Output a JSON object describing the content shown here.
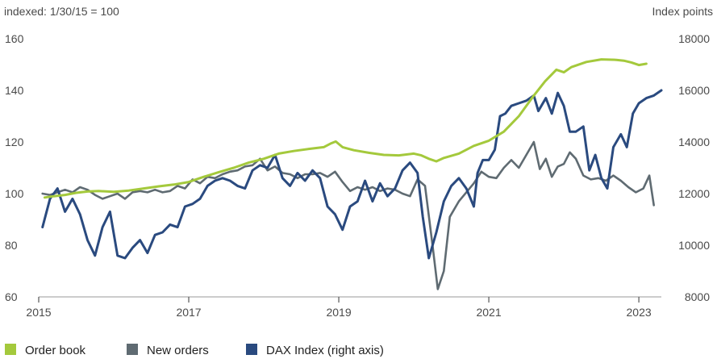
{
  "chart_data": {
    "type": "line",
    "left_axis_title": "indexed: 1/30/15 = 100",
    "right_axis_title": "Index points",
    "y_left": {
      "min": 60,
      "max": 160,
      "ticks": [
        60,
        80,
        100,
        120,
        140,
        160
      ]
    },
    "y_right": {
      "min": 8000,
      "max": 18000,
      "ticks": [
        8000,
        10000,
        12000,
        14000,
        16000,
        18000
      ],
      "tick_labels": [
        "8000",
        "10000",
        "12000",
        "14000",
        "16000",
        "18000"
      ]
    },
    "x_axis": {
      "min": 2015.0,
      "max": 2023.3,
      "ticks": [
        2015,
        2017,
        2019,
        2021,
        2023
      ],
      "tick_labels": [
        "2015",
        "2017",
        "2019",
        "2021",
        "2023"
      ]
    },
    "colors": {
      "order_book": "#a4c93c",
      "new_orders": "#5f6b72",
      "dax": "#2a4a7f",
      "tick_mark": "#555555",
      "axis_line": "#9a9a9a"
    },
    "series": [
      {
        "name": "Order book",
        "axis": "left",
        "x": [
          2015.08,
          2015.2,
          2015.35,
          2015.5,
          2015.65,
          2015.8,
          2016.0,
          2016.2,
          2016.4,
          2016.6,
          2016.8,
          2017.0,
          2017.2,
          2017.4,
          2017.6,
          2017.8,
          2018.0,
          2018.2,
          2018.4,
          2018.6,
          2018.8,
          2018.9,
          2018.96,
          2019.05,
          2019.2,
          2019.4,
          2019.6,
          2019.8,
          2020.0,
          2020.1,
          2020.2,
          2020.3,
          2020.4,
          2020.6,
          2020.8,
          2021.0,
          2021.2,
          2021.4,
          2021.6,
          2021.75,
          2021.9,
          2022.0,
          2022.1,
          2022.3,
          2022.5,
          2022.7,
          2022.8,
          2022.9,
          2023.0,
          2023.1
        ],
        "values": [
          98.5,
          99.0,
          99.5,
          100.3,
          100.8,
          101.0,
          100.7,
          101.2,
          102.0,
          102.8,
          103.5,
          104.5,
          106.5,
          108.3,
          110.0,
          112.0,
          113.5,
          115.5,
          116.5,
          117.3,
          118.0,
          119.5,
          120.2,
          118.0,
          116.8,
          115.8,
          115.0,
          114.8,
          115.5,
          114.8,
          113.5,
          112.5,
          113.8,
          115.5,
          118.5,
          120.5,
          124.0,
          130.0,
          138.0,
          143.5,
          148.0,
          147.0,
          149.0,
          151.0,
          152.0,
          151.8,
          151.5,
          150.8,
          149.8,
          150.3
        ]
      },
      {
        "name": "New orders",
        "axis": "left",
        "x": [
          2015.05,
          2015.15,
          2015.25,
          2015.35,
          2015.45,
          2015.55,
          2015.65,
          2015.75,
          2015.85,
          2015.95,
          2016.05,
          2016.15,
          2016.25,
          2016.35,
          2016.45,
          2016.55,
          2016.65,
          2016.75,
          2016.85,
          2016.95,
          2017.05,
          2017.15,
          2017.25,
          2017.35,
          2017.45,
          2017.55,
          2017.65,
          2017.75,
          2017.85,
          2017.95,
          2018.05,
          2018.15,
          2018.25,
          2018.35,
          2018.45,
          2018.55,
          2018.65,
          2018.75,
          2018.85,
          2018.95,
          2019.05,
          2019.15,
          2019.25,
          2019.35,
          2019.45,
          2019.55,
          2019.65,
          2019.75,
          2019.85,
          2019.95,
          2020.05,
          2020.15,
          2020.25,
          2020.32,
          2020.4,
          2020.48,
          2020.6,
          2020.7,
          2020.8,
          2020.9,
          2021.0,
          2021.1,
          2021.2,
          2021.3,
          2021.4,
          2021.5,
          2021.6,
          2021.68,
          2021.76,
          2021.84,
          2021.92,
          2022.0,
          2022.08,
          2022.16,
          2022.26,
          2022.36,
          2022.46,
          2022.56,
          2022.66,
          2022.76,
          2022.86,
          2022.96,
          2023.06,
          2023.14,
          2023.2
        ],
        "values": [
          100,
          99.5,
          100.5,
          101.5,
          100.5,
          102.5,
          101.5,
          99.5,
          98.0,
          99.0,
          100.0,
          98.0,
          100.5,
          101.0,
          100.5,
          101.5,
          100.5,
          101.0,
          103.0,
          102.0,
          105.5,
          104.0,
          106.5,
          106.0,
          107.5,
          108.5,
          109.0,
          110.5,
          111.0,
          113.5,
          109.0,
          110.5,
          108.0,
          107.5,
          106.0,
          107.5,
          107.5,
          108.0,
          106.5,
          108.5,
          104.5,
          101.0,
          102.5,
          101.5,
          102.5,
          101.0,
          102.0,
          101.5,
          100.0,
          99.0,
          105.5,
          103.0,
          80.0,
          63.0,
          70.0,
          91.0,
          97.0,
          100.5,
          104.0,
          108.5,
          106.5,
          106.0,
          110.0,
          113.0,
          110.0,
          115.0,
          120.0,
          109.5,
          113.5,
          106.5,
          110.5,
          111.5,
          116.0,
          113.5,
          107.0,
          105.5,
          106.0,
          105.0,
          107.0,
          105.0,
          102.5,
          100.5,
          102.0,
          107.0,
          95.5
        ]
      },
      {
        "name": "DAX Index (right axis)",
        "axis": "right",
        "x": [
          2015.05,
          2015.15,
          2015.25,
          2015.35,
          2015.45,
          2015.55,
          2015.65,
          2015.75,
          2015.85,
          2015.95,
          2016.05,
          2016.15,
          2016.25,
          2016.35,
          2016.45,
          2016.55,
          2016.65,
          2016.75,
          2016.85,
          2016.95,
          2017.05,
          2017.15,
          2017.25,
          2017.35,
          2017.45,
          2017.55,
          2017.65,
          2017.75,
          2017.85,
          2017.95,
          2018.05,
          2018.15,
          2018.25,
          2018.35,
          2018.45,
          2018.55,
          2018.65,
          2018.75,
          2018.85,
          2018.95,
          2019.05,
          2019.15,
          2019.25,
          2019.35,
          2019.45,
          2019.55,
          2019.65,
          2019.75,
          2019.85,
          2019.95,
          2020.05,
          2020.12,
          2020.2,
          2020.3,
          2020.4,
          2020.5,
          2020.6,
          2020.7,
          2020.8,
          2020.85,
          2020.92,
          2021.0,
          2021.08,
          2021.15,
          2021.22,
          2021.3,
          2021.4,
          2021.5,
          2021.6,
          2021.66,
          2021.76,
          2021.84,
          2021.92,
          2022.0,
          2022.08,
          2022.16,
          2022.26,
          2022.34,
          2022.42,
          2022.5,
          2022.58,
          2022.66,
          2022.76,
          2022.84,
          2022.92,
          2023.0,
          2023.1,
          2023.2,
          2023.3
        ],
        "values": [
          10700,
          11800,
          12200,
          11300,
          11800,
          11200,
          10200,
          9600,
          10700,
          11300,
          9600,
          9500,
          9900,
          10200,
          9700,
          10400,
          10500,
          10800,
          10700,
          11500,
          11600,
          11800,
          12300,
          12500,
          12600,
          12500,
          12300,
          12200,
          12900,
          13100,
          13000,
          13500,
          12600,
          12300,
          12800,
          12500,
          12900,
          12600,
          11500,
          11200,
          10600,
          11500,
          11700,
          12500,
          11700,
          12400,
          11900,
          12200,
          12900,
          13200,
          12800,
          11100,
          9500,
          10500,
          11700,
          12300,
          12600,
          12200,
          11500,
          12800,
          13300,
          13300,
          13700,
          15000,
          15100,
          15400,
          15500,
          15600,
          15800,
          15200,
          15700,
          15100,
          15900,
          15400,
          14400,
          14400,
          14600,
          12900,
          13500,
          12600,
          12200,
          13800,
          14300,
          13800,
          15100,
          15500,
          15700,
          15800,
          16000
        ]
      }
    ],
    "legend": [
      {
        "key": "order_book",
        "label": "Order book"
      },
      {
        "key": "new_orders",
        "label": "New orders"
      },
      {
        "key": "dax",
        "label": "DAX Index (right axis)"
      }
    ]
  }
}
